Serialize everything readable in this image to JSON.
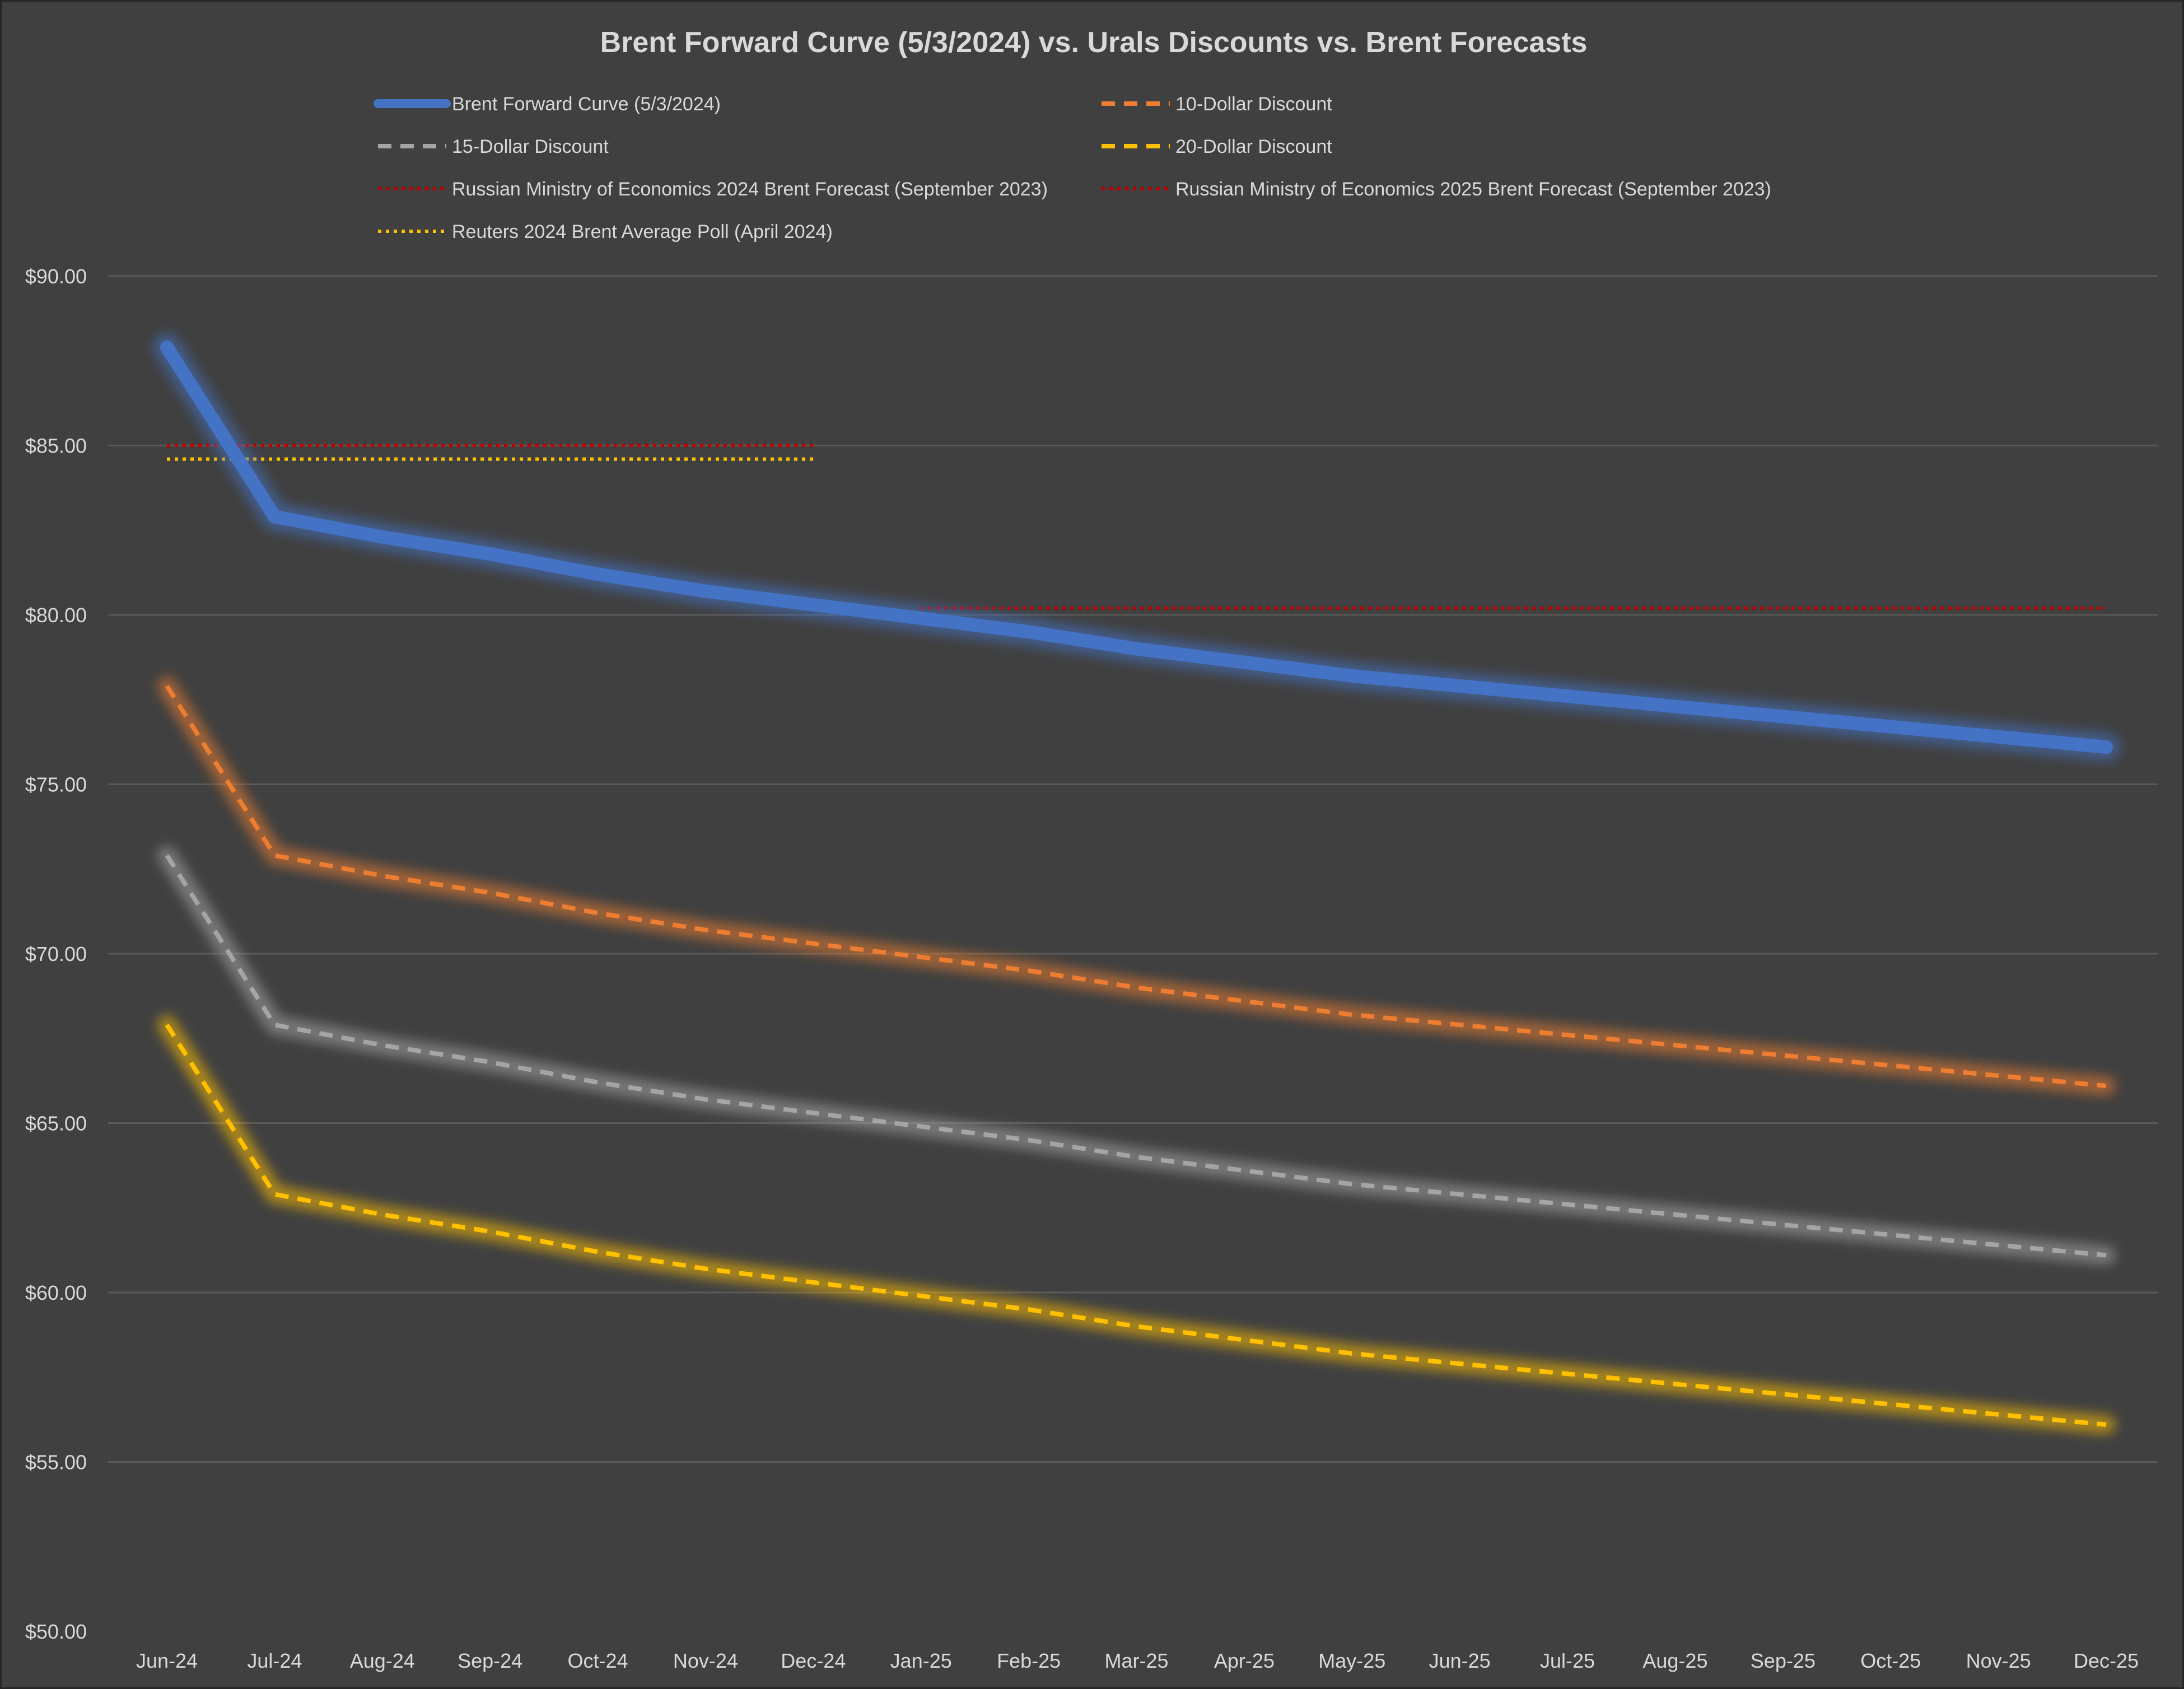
{
  "chart_data": {
    "type": "line",
    "title": "Brent Forward Curve (5/3/2024) vs. Urals Discounts vs. Brent Forecasts",
    "xlabel": "",
    "ylabel": "",
    "ylim": [
      50,
      90
    ],
    "y_ticks": [
      50,
      55,
      60,
      65,
      70,
      75,
      80,
      85,
      90
    ],
    "y_tick_labels": [
      "$50.00",
      "$55.00",
      "$60.00",
      "$65.00",
      "$70.00",
      "$75.00",
      "$80.00",
      "$85.00",
      "$90.00"
    ],
    "grid": true,
    "legend_position": "top",
    "categories": [
      "Jun-24",
      "Jul-24",
      "Aug-24",
      "Sep-24",
      "Oct-24",
      "Nov-24",
      "Dec-24",
      "Jan-25",
      "Feb-25",
      "Mar-25",
      "Apr-25",
      "May-25",
      "Jun-25",
      "Jul-25",
      "Aug-25",
      "Sep-25",
      "Oct-25",
      "Nov-25",
      "Dec-25"
    ],
    "series": [
      {
        "name": "Brent Forward Curve (5/3/2024)",
        "color": "#4472C4",
        "style": "solid",
        "glow": "#4472C4",
        "values": [
          87.9,
          82.9,
          82.3,
          81.8,
          81.2,
          80.7,
          80.3,
          79.9,
          79.5,
          79.0,
          78.6,
          78.2,
          77.9,
          77.6,
          77.3,
          77.0,
          76.7,
          76.4,
          76.1
        ]
      },
      {
        "name": "10-Dollar Discount",
        "color": "#ED7D31",
        "style": "dash",
        "glow": "#ED7D31",
        "values": [
          77.9,
          72.9,
          72.3,
          71.8,
          71.2,
          70.7,
          70.3,
          69.9,
          69.5,
          69.0,
          68.6,
          68.2,
          67.9,
          67.6,
          67.3,
          67.0,
          66.7,
          66.4,
          66.1
        ]
      },
      {
        "name": "15-Dollar Discount",
        "color": "#A5A5A5",
        "style": "dash",
        "glow": "#A5A5A5",
        "values": [
          72.9,
          67.9,
          67.3,
          66.8,
          66.2,
          65.7,
          65.3,
          64.9,
          64.5,
          64.0,
          63.6,
          63.2,
          62.9,
          62.6,
          62.3,
          62.0,
          61.7,
          61.4,
          61.1
        ]
      },
      {
        "name": "20-Dollar Discount",
        "color": "#FFC000",
        "style": "dash",
        "glow": "#FFC000",
        "values": [
          67.9,
          62.9,
          62.3,
          61.8,
          61.2,
          60.7,
          60.3,
          59.9,
          59.5,
          59.0,
          58.6,
          58.2,
          57.9,
          57.6,
          57.3,
          57.0,
          56.7,
          56.4,
          56.1
        ]
      },
      {
        "name": "Russian Ministry of Economics 2024 Brent Forecast (September 2023)",
        "color": "#C00000",
        "style": "dot",
        "glow": "#4472C4",
        "values": [
          85.0,
          85.0,
          85.0,
          85.0,
          85.0,
          85.0,
          85.0,
          null,
          null,
          null,
          null,
          null,
          null,
          null,
          null,
          null,
          null,
          null,
          null
        ]
      },
      {
        "name": "Russian Ministry of Economics 2025 Brent Forecast (September 2023)",
        "color": "#C00000",
        "style": "dot",
        "glow": "#70AD47",
        "values": [
          null,
          null,
          null,
          null,
          null,
          null,
          null,
          80.2,
          80.2,
          80.2,
          80.2,
          80.2,
          80.2,
          80.2,
          80.2,
          80.2,
          80.2,
          80.2,
          80.2
        ]
      },
      {
        "name": "Reuters 2024 Brent Average Poll (April 2024)",
        "color": "#FFC000",
        "style": "dot",
        "glow": null,
        "values": [
          84.6,
          84.6,
          84.6,
          84.6,
          84.6,
          84.6,
          84.6,
          null,
          null,
          null,
          null,
          null,
          null,
          null,
          null,
          null,
          null,
          null,
          null
        ]
      }
    ]
  }
}
